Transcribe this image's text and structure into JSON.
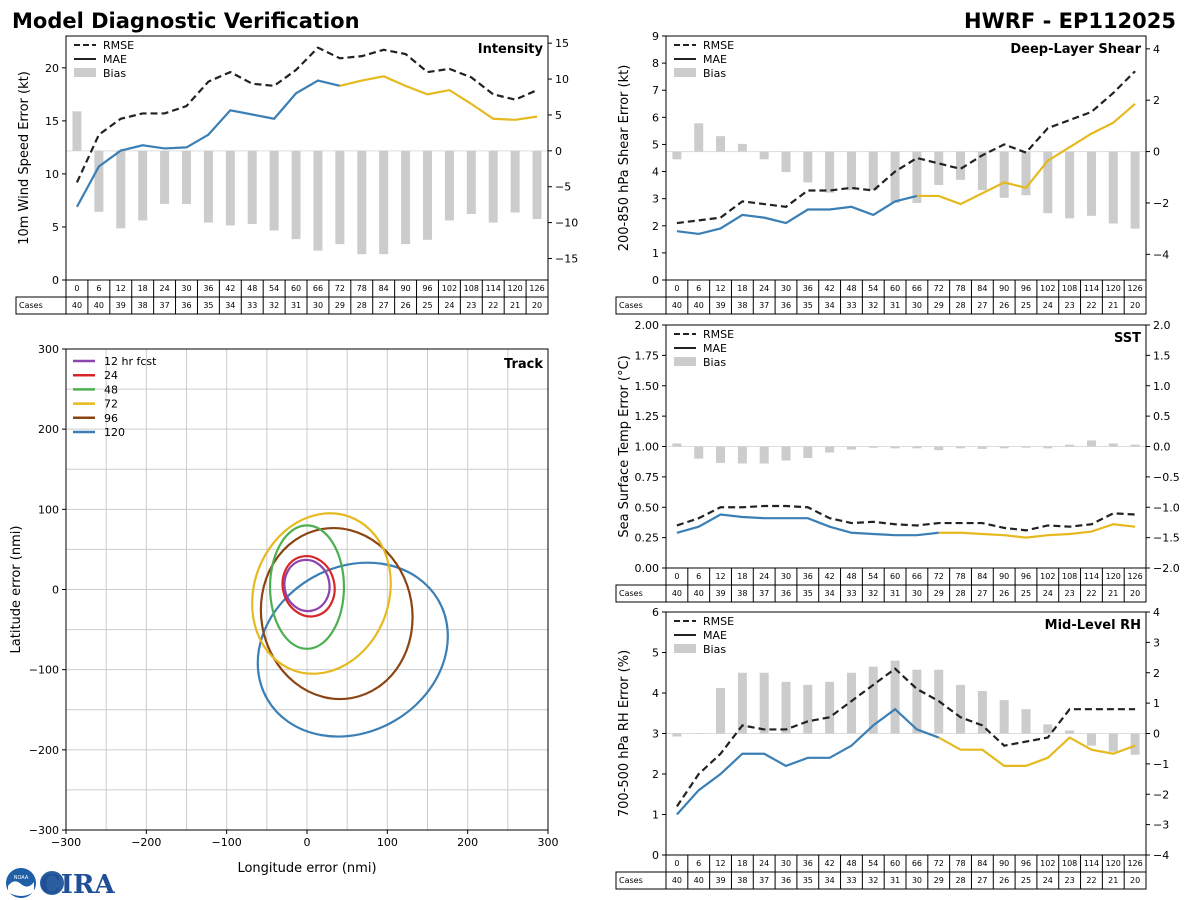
{
  "header": {
    "title": "Model Diagnostic Verification",
    "model_storm": "HWRF - EP112025"
  },
  "colors": {
    "rmse": "#222222",
    "mae_early": "#3a7fb5",
    "mae_late": "#e6b91e",
    "bias": "#cccccc",
    "grid": "#cccccc",
    "track_12": "#8e44ad",
    "track_24": "#d62728",
    "track_48": "#4caf50",
    "track_72": "#e6b91e",
    "track_96": "#8b4513",
    "track_120": "#3a7fb5"
  },
  "legend_labels": {
    "rmse": "RMSE",
    "mae": "MAE",
    "bias": "Bias"
  },
  "table": {
    "cases_label": "Cases",
    "hours": [
      0,
      6,
      12,
      18,
      24,
      30,
      36,
      42,
      48,
      54,
      60,
      66,
      72,
      78,
      84,
      90,
      96,
      102,
      108,
      114,
      120,
      126
    ],
    "cases": [
      40,
      40,
      39,
      38,
      37,
      36,
      35,
      34,
      33,
      32,
      31,
      30,
      29,
      28,
      27,
      26,
      25,
      24,
      23,
      22,
      21,
      20
    ]
  },
  "logo": {
    "text": "CIRA",
    "seal_text": "NOAA"
  },
  "chart_data": [
    {
      "id": "intensity",
      "type": "line",
      "title": "Intensity",
      "ylabel": "10m Wind Speed Error (kt)",
      "ylim": [
        0,
        23
      ],
      "yticks": [
        0,
        5,
        10,
        15,
        20
      ],
      "ylim_right": [
        -18,
        16
      ],
      "yticks_right": [
        -15,
        -10,
        -5,
        0,
        5,
        10,
        15
      ],
      "mae_split_hour": 72,
      "series": [
        {
          "name": "RMSE",
          "values": [
            9.2,
            13.7,
            15.2,
            15.7,
            15.7,
            16.4,
            18.7,
            19.6,
            18.5,
            18.3,
            19.8,
            21.9,
            20.9,
            21.1,
            21.7,
            21.3,
            19.6,
            19.9,
            19.1,
            17.5,
            17.0,
            17.9
          ]
        },
        {
          "name": "MAE",
          "values": [
            6.9,
            10.7,
            12.2,
            12.7,
            12.4,
            12.5,
            13.7,
            16.0,
            15.6,
            15.2,
            17.6,
            18.8,
            18.3,
            18.8,
            19.2,
            18.3,
            17.5,
            17.9,
            16.6,
            15.2,
            15.1,
            15.4
          ]
        },
        {
          "name": "Bias",
          "values": [
            5.5,
            -8.5,
            -10.8,
            -9.7,
            -7.4,
            -7.4,
            -10.0,
            -10.4,
            -10.2,
            -11.1,
            -12.3,
            -13.9,
            -13.0,
            -14.4,
            -14.4,
            -13.0,
            -12.4,
            -9.7,
            -8.8,
            -10.0,
            -8.6,
            -9.5
          ]
        }
      ]
    },
    {
      "id": "shear",
      "type": "line",
      "title": "Deep-Layer Shear",
      "ylabel": "200-850 hPa Shear Error (kt)",
      "ylim": [
        0,
        9
      ],
      "yticks": [
        0,
        1,
        2,
        3,
        4,
        5,
        6,
        7,
        8,
        9
      ],
      "ylim_right": [
        -5,
        4.5
      ],
      "yticks_right": [
        -4,
        -2,
        0,
        2,
        4
      ],
      "mae_split_hour": 66,
      "series": [
        {
          "name": "RMSE",
          "values": [
            2.1,
            2.2,
            2.3,
            2.9,
            2.8,
            2.7,
            3.3,
            3.3,
            3.4,
            3.3,
            4.0,
            4.5,
            4.3,
            4.1,
            4.6,
            5.0,
            4.7,
            5.6,
            5.9,
            6.2,
            6.9,
            7.7
          ]
        },
        {
          "name": "MAE",
          "values": [
            1.8,
            1.7,
            1.9,
            2.4,
            2.3,
            2.1,
            2.6,
            2.6,
            2.7,
            2.4,
            2.9,
            3.1,
            3.1,
            2.8,
            3.2,
            3.6,
            3.4,
            4.4,
            4.9,
            5.4,
            5.8,
            6.5
          ]
        },
        {
          "name": "Bias",
          "values": [
            -0.3,
            1.1,
            0.6,
            0.3,
            -0.3,
            -0.8,
            -1.2,
            -1.6,
            -1.5,
            -1.5,
            -2.0,
            -2.0,
            -1.3,
            -1.1,
            -1.5,
            -1.8,
            -1.7,
            -2.4,
            -2.6,
            -2.5,
            -2.8,
            -3.0
          ]
        }
      ]
    },
    {
      "id": "sst",
      "type": "line",
      "title": "SST",
      "ylabel": "Sea Surface Temp Error (°C)",
      "ylim": [
        0,
        2.0
      ],
      "yticks": [
        0.0,
        0.25,
        0.5,
        0.75,
        1.0,
        1.25,
        1.5,
        1.75,
        2.0
      ],
      "ylim_right": [
        -2.0,
        2.0
      ],
      "yticks_right": [
        -2.0,
        -1.5,
        -1.0,
        -0.5,
        0.0,
        0.5,
        1.0,
        1.5,
        2.0
      ],
      "mae_split_hour": 72,
      "series": [
        {
          "name": "RMSE",
          "values": [
            0.35,
            0.41,
            0.5,
            0.5,
            0.51,
            0.51,
            0.5,
            0.41,
            0.37,
            0.38,
            0.36,
            0.35,
            0.37,
            0.37,
            0.37,
            0.33,
            0.31,
            0.35,
            0.34,
            0.36,
            0.45,
            0.44
          ]
        },
        {
          "name": "MAE",
          "values": [
            0.29,
            0.34,
            0.44,
            0.42,
            0.41,
            0.41,
            0.41,
            0.34,
            0.29,
            0.28,
            0.27,
            0.27,
            0.29,
            0.29,
            0.28,
            0.27,
            0.25,
            0.27,
            0.28,
            0.3,
            0.36,
            0.34
          ]
        },
        {
          "name": "Bias",
          "values": [
            0.05,
            -0.2,
            -0.27,
            -0.28,
            -0.28,
            -0.23,
            -0.19,
            -0.1,
            -0.05,
            -0.02,
            -0.03,
            -0.03,
            -0.06,
            -0.03,
            -0.04,
            -0.03,
            -0.02,
            -0.03,
            0.03,
            0.1,
            0.05,
            0.03
          ]
        }
      ]
    },
    {
      "id": "rh",
      "type": "line",
      "title": "Mid-Level RH",
      "ylabel": "700-500 hPa RH Error (%)",
      "ylim": [
        0,
        6
      ],
      "yticks": [
        0,
        1,
        2,
        3,
        4,
        5,
        6
      ],
      "ylim_right": [
        -4,
        4
      ],
      "yticks_right": [
        -4,
        -3,
        -2,
        -1,
        0,
        1,
        2,
        3,
        4
      ],
      "mae_split_hour": 72,
      "series": [
        {
          "name": "RMSE",
          "values": [
            1.2,
            2.0,
            2.5,
            3.2,
            3.1,
            3.1,
            3.3,
            3.4,
            3.8,
            4.2,
            4.6,
            4.1,
            3.8,
            3.4,
            3.2,
            2.7,
            2.8,
            2.9,
            3.6,
            3.6,
            3.6,
            3.6
          ]
        },
        {
          "name": "MAE",
          "values": [
            1.0,
            1.6,
            2.0,
            2.5,
            2.5,
            2.2,
            2.4,
            2.4,
            2.7,
            3.2,
            3.6,
            3.1,
            2.9,
            2.6,
            2.6,
            2.2,
            2.2,
            2.4,
            2.9,
            2.6,
            2.5,
            2.7
          ]
        },
        {
          "name": "Bias",
          "values": [
            -0.1,
            0,
            1.5,
            2.0,
            2.0,
            1.7,
            1.6,
            1.7,
            2.0,
            2.2,
            2.4,
            2.1,
            2.1,
            1.6,
            1.4,
            1.1,
            0.8,
            0.3,
            0.1,
            -0.4,
            -0.6,
            -0.7
          ]
        }
      ]
    },
    {
      "id": "track",
      "type": "scatter",
      "title": "Track",
      "xlabel": "Longitude error (nmi)",
      "ylabel": "Latitude error (nmi)",
      "xlim": [
        -300,
        300
      ],
      "ylim": [
        -300,
        300
      ],
      "xticks": [
        -300,
        -200,
        -100,
        0,
        100,
        200,
        300
      ],
      "yticks": [
        -300,
        -200,
        -100,
        0,
        100,
        200,
        300
      ],
      "ellipses": [
        {
          "label": "12 hr fcst",
          "color_key": "track_12",
          "cx": 0,
          "cy": 5,
          "rx": 28,
          "ry": 32,
          "angle": -10
        },
        {
          "label": "24",
          "color_key": "track_24",
          "cx": 2,
          "cy": 4,
          "rx": 32,
          "ry": 38,
          "angle": -15
        },
        {
          "label": "48",
          "color_key": "track_48",
          "cx": 0,
          "cy": 3,
          "rx": 46,
          "ry": 77,
          "angle": 0
        },
        {
          "label": "72",
          "color_key": "track_72",
          "cx": 18,
          "cy": -5,
          "rx": 84,
          "ry": 102,
          "angle": 20
        },
        {
          "label": "96",
          "color_key": "track_96",
          "cx": 37,
          "cy": -30,
          "rx": 94,
          "ry": 107,
          "angle": -10
        },
        {
          "label": "120",
          "color_key": "track_120",
          "cx": 57,
          "cy": -75,
          "rx": 123,
          "ry": 103,
          "angle": -30
        }
      ]
    }
  ]
}
